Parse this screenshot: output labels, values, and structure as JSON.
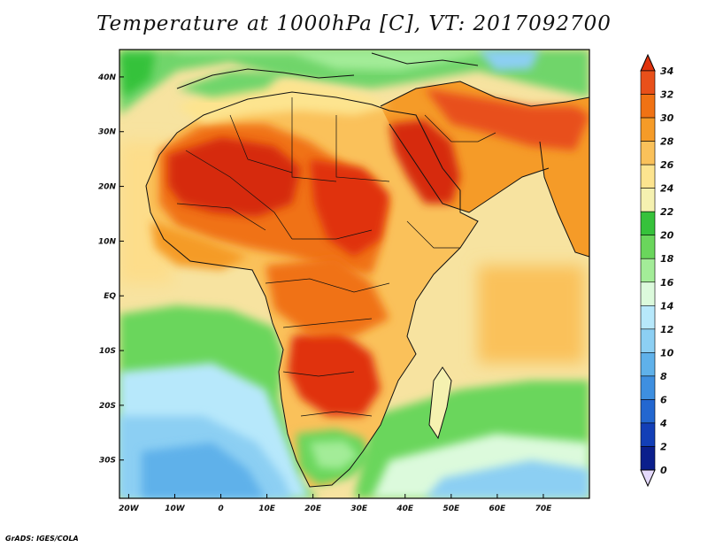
{
  "title": "Temperature at 1000hPa [C], VT: 2017092700",
  "footer": "GrADS: IGES/COLA",
  "map": {
    "variable": "Temperature at 1000hPa",
    "units": "C",
    "lon_range": [
      -22,
      80
    ],
    "lat_range": [
      -37,
      45
    ],
    "lon_ticks": [
      "20W",
      "10W",
      "0",
      "10E",
      "20E",
      "30E",
      "40E",
      "50E",
      "60E",
      "70E"
    ],
    "lat_ticks": [
      "40N",
      "30N",
      "20N",
      "10N",
      "EQ",
      "10S",
      "20S",
      "30S"
    ]
  },
  "colorbar": {
    "labels": [
      "34",
      "32",
      "30",
      "28",
      "26",
      "24",
      "22",
      "20",
      "18",
      "16",
      "14",
      "12",
      "10",
      "8",
      "6",
      "4",
      "2",
      "0"
    ],
    "colors": [
      "#e0330d",
      "#e8501a",
      "#f07214",
      "#f59b28",
      "#fac15a",
      "#fde48f",
      "#f5f1b0",
      "#36c23b",
      "#6ad65c",
      "#a3ec98",
      "#dcfadc",
      "#b7e8fb",
      "#8ccff3",
      "#5fb1ea",
      "#3e8fe0",
      "#2367d0",
      "#133fb7",
      "#0b1f8c",
      "#e4d9fb"
    ]
  }
}
